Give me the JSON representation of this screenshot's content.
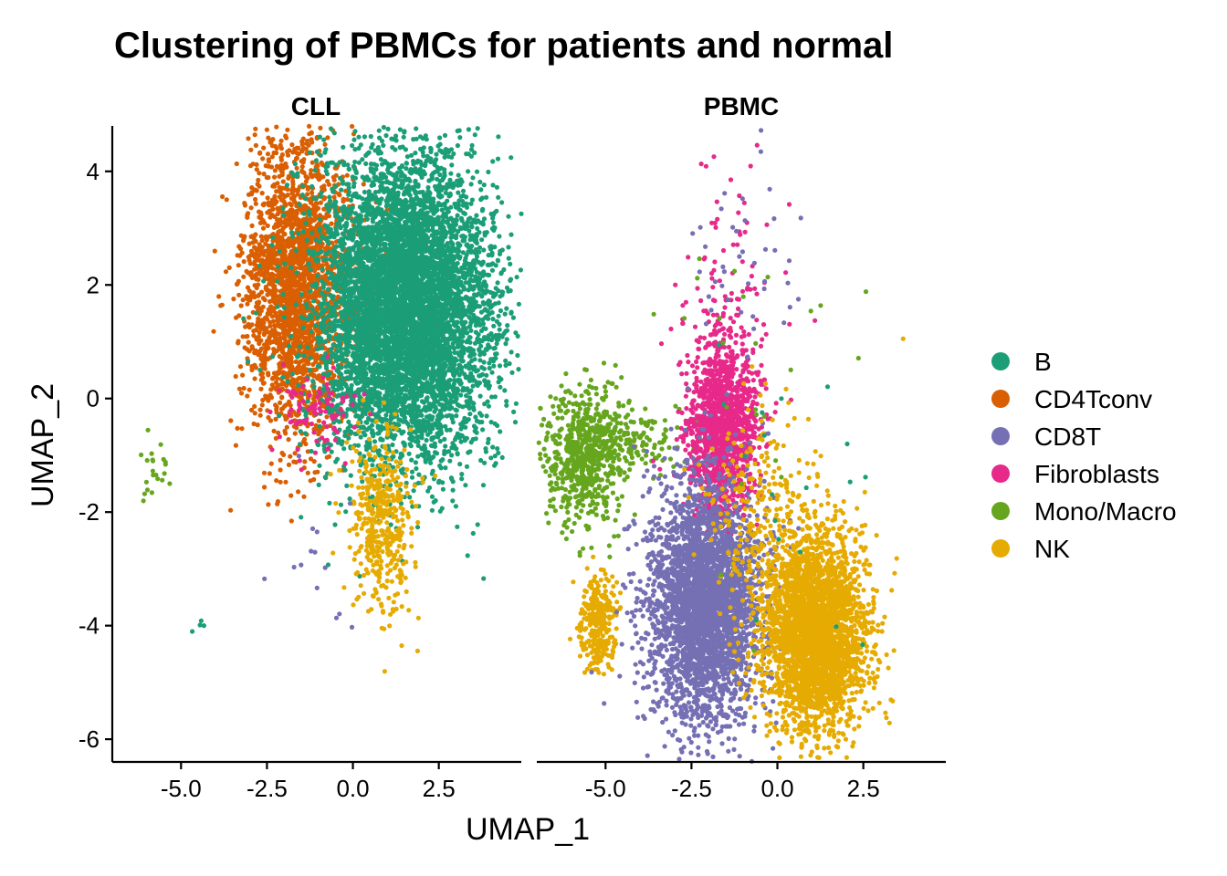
{
  "chart_data": {
    "type": "scatter",
    "title": "Clustering of PBMCs for patients and normal",
    "xlabel": "UMAP_1",
    "ylabel": "UMAP_2",
    "xlim": [
      -7.0,
      4.9
    ],
    "ylim": [
      -6.4,
      4.8
    ],
    "x_ticks": [
      -5.0,
      -2.5,
      0.0,
      2.5
    ],
    "x_tick_labels": [
      "-5.0",
      "-2.5",
      "0.0",
      "2.5"
    ],
    "y_ticks": [
      4,
      2,
      0,
      -2,
      -4,
      -6
    ],
    "y_tick_labels": [
      "4",
      "2",
      "0",
      "-2",
      "-4",
      "-6"
    ],
    "grid": false,
    "legend_position": "right",
    "facets": [
      "CLL",
      "PBMC"
    ],
    "series": [
      {
        "name": "B",
        "color": "#1B9E77"
      },
      {
        "name": "CD4Tconv",
        "color": "#D95F02"
      },
      {
        "name": "CD8T",
        "color": "#7570B3"
      },
      {
        "name": "Fibroblasts",
        "color": "#E7298A"
      },
      {
        "name": "Mono/Macro",
        "color": "#66A61E"
      },
      {
        "name": "NK",
        "color": "#E6AB02"
      }
    ],
    "clusters": [
      {
        "facet": "CLL",
        "series": "CD4Tconv",
        "cx": -1.6,
        "cy": 2.0,
        "sx": 0.75,
        "sy": 1.35,
        "n": 2400
      },
      {
        "facet": "CLL",
        "series": "B",
        "cx": 1.5,
        "cy": 1.6,
        "sx": 1.25,
        "sy": 1.3,
        "n": 6500
      },
      {
        "facet": "CLL",
        "series": "NK",
        "cx": 0.8,
        "cy": -2.2,
        "sx": 0.45,
        "sy": 0.75,
        "n": 420
      },
      {
        "facet": "CLL",
        "series": "Fibroblasts",
        "cx": -1.0,
        "cy": -0.2,
        "sx": 0.6,
        "sy": 0.35,
        "n": 90
      },
      {
        "facet": "CLL",
        "series": "Mono/Macro",
        "cx": -5.8,
        "cy": -1.3,
        "sx": 0.25,
        "sy": 0.3,
        "n": 22
      },
      {
        "facet": "CLL",
        "series": "CD8T",
        "cx": -1.2,
        "cy": -3.0,
        "sx": 1.0,
        "sy": 0.9,
        "n": 14
      },
      {
        "facet": "CLL",
        "series": "B",
        "cx": -4.5,
        "cy": -4.0,
        "sx": 0.15,
        "sy": 0.08,
        "n": 4
      },
      {
        "facet": "PBMC",
        "series": "Mono/Macro",
        "cx": -5.6,
        "cy": -1.0,
        "sx": 0.55,
        "sy": 0.6,
        "n": 650
      },
      {
        "facet": "PBMC",
        "series": "Mono/Macro",
        "cx": -4.3,
        "cy": -0.7,
        "sx": 0.8,
        "sy": 0.3,
        "n": 140
      },
      {
        "facet": "PBMC",
        "series": "NK",
        "cx": -5.2,
        "cy": -3.9,
        "sx": 0.25,
        "sy": 0.45,
        "n": 280
      },
      {
        "facet": "PBMC",
        "series": "Fibroblasts",
        "cx": -1.6,
        "cy": -0.5,
        "sx": 0.5,
        "sy": 0.8,
        "n": 1400
      },
      {
        "facet": "PBMC",
        "series": "Fibroblasts",
        "cx": -1.4,
        "cy": 2.2,
        "sx": 0.8,
        "sy": 1.1,
        "n": 80
      },
      {
        "facet": "PBMC",
        "series": "CD8T",
        "cx": -2.1,
        "cy": -3.6,
        "sx": 0.8,
        "sy": 1.05,
        "n": 3300
      },
      {
        "facet": "PBMC",
        "series": "NK",
        "cx": 1.1,
        "cy": -4.1,
        "sx": 0.75,
        "sy": 0.85,
        "n": 3000
      },
      {
        "facet": "PBMC",
        "series": "NK",
        "cx": -0.5,
        "cy": -2.0,
        "sx": 0.7,
        "sy": 0.9,
        "n": 260
      },
      {
        "facet": "PBMC",
        "series": "CD8T",
        "cx": -1.0,
        "cy": 2.5,
        "sx": 0.8,
        "sy": 1.1,
        "n": 40
      },
      {
        "facet": "PBMC",
        "series": "Mono/Macro",
        "cx": -0.3,
        "cy": 1.0,
        "sx": 1.5,
        "sy": 1.8,
        "n": 25
      },
      {
        "facet": "PBMC",
        "series": "B",
        "cx": 0.5,
        "cy": -1.5,
        "sx": 1.0,
        "sy": 2.0,
        "n": 18
      },
      {
        "facet": "PBMC",
        "series": "NK",
        "cx": 3.7,
        "cy": 1.0,
        "sx": 0.05,
        "sy": 0.05,
        "n": 1
      }
    ]
  }
}
